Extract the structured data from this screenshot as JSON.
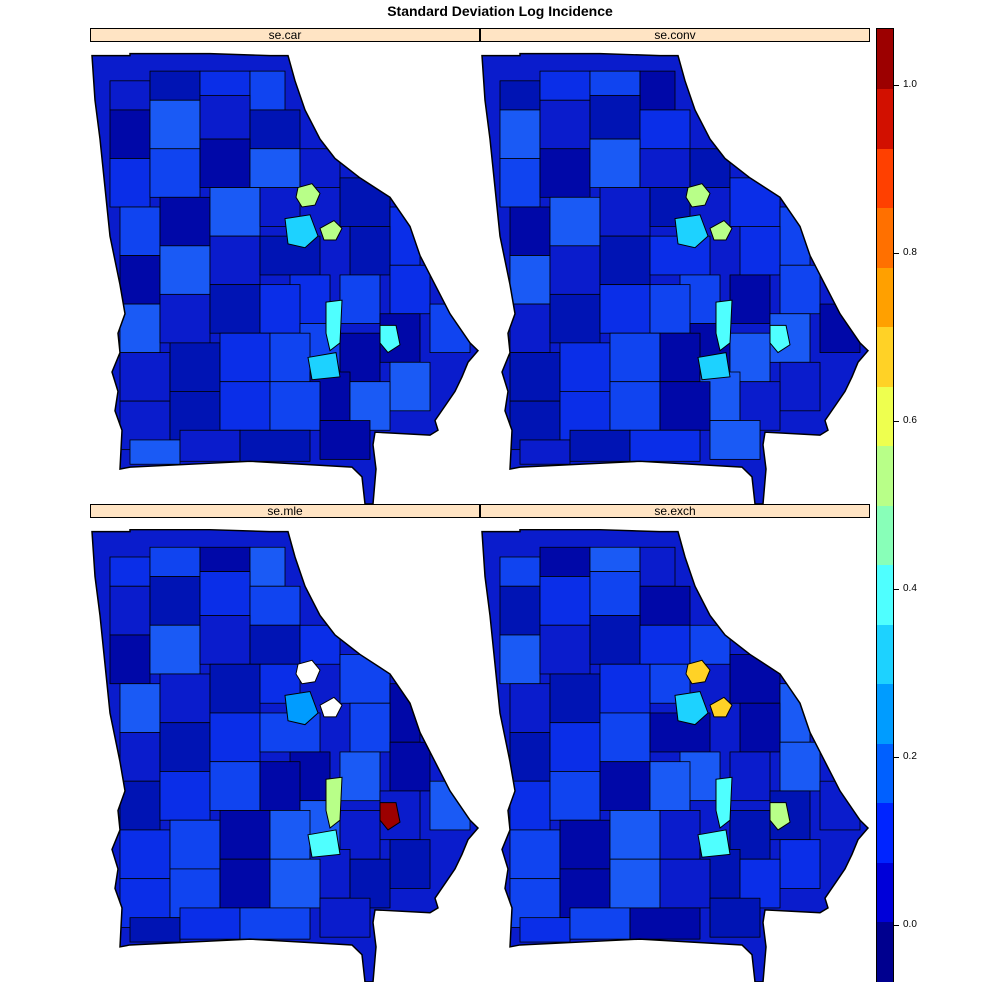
{
  "title": "Standard Deviation Log Incidence",
  "colors": {
    "strip_bg": "#ffe4c4",
    "palette": [
      "#00008f",
      "#0000d9",
      "#0024ff",
      "#0060ff",
      "#009cff",
      "#1dd2ff",
      "#4fffff",
      "#88ffb8",
      "#b8ff88",
      "#eeff4f",
      "#ffd226",
      "#ffa000",
      "#ff7000",
      "#ff4000",
      "#d21000",
      "#9c0000"
    ],
    "base": "#0a1ccc"
  },
  "panels": [
    {
      "label": "se.car",
      "highlights": [
        {
          "color": "#b8ff88"
        },
        {
          "color": "#b8ff88"
        },
        {
          "color": "#1dd2ff"
        },
        {
          "color": "#4fffff"
        },
        {
          "color": "#4fffff"
        },
        {
          "color": "#1dd2ff"
        }
      ]
    },
    {
      "label": "se.conv",
      "highlights": [
        {
          "color": "#b8ff88"
        },
        {
          "color": "#b8ff88"
        },
        {
          "color": "#1dd2ff"
        },
        {
          "color": "#4fffff"
        },
        {
          "color": "#4fffff"
        },
        {
          "color": "#1dd2ff"
        }
      ]
    },
    {
      "label": "se.mle",
      "highlights": [
        {
          "color": "#ffffff"
        },
        {
          "color": "#ffffff"
        },
        {
          "color": "#009cff"
        },
        {
          "color": "#b8ff88"
        },
        {
          "color": "#9c0000"
        },
        {
          "color": "#4fffff"
        }
      ]
    },
    {
      "label": "se.exch",
      "highlights": [
        {
          "color": "#ffd226"
        },
        {
          "color": "#ffd226"
        },
        {
          "color": "#1dd2ff"
        },
        {
          "color": "#4fffff"
        },
        {
          "color": "#b8ff88"
        },
        {
          "color": "#4fffff"
        }
      ]
    }
  ],
  "colorkey": {
    "min": -0.067,
    "max": 1.067,
    "ticks": [
      "0.0",
      "0.2",
      "0.4",
      "0.6",
      "0.8",
      "1.0"
    ],
    "tick_values": [
      0.0,
      0.2,
      0.4,
      0.6,
      0.8,
      1.0
    ]
  }
}
